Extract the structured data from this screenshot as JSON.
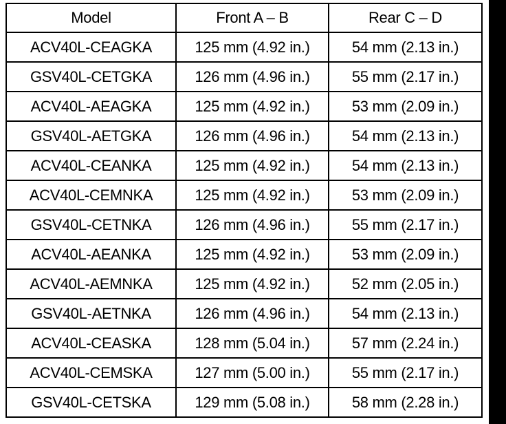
{
  "table": {
    "headers": [
      "Model",
      "Front A – B",
      "Rear C – D"
    ],
    "rows": [
      [
        "ACV40L-CEAGKA",
        "125 mm (4.92 in.)",
        "54 mm (2.13 in.)"
      ],
      [
        "GSV40L-CETGKA",
        "126 mm (4.96 in.)",
        "55 mm (2.17 in.)"
      ],
      [
        "ACV40L-AEAGKA",
        "125 mm (4.92 in.)",
        "53 mm (2.09 in.)"
      ],
      [
        "GSV40L-AETGKA",
        "126 mm (4.96 in.)",
        "54 mm (2.13 in.)"
      ],
      [
        "ACV40L-CEANKA",
        "125 mm (4.92 in.)",
        "54 mm (2.13 in.)"
      ],
      [
        "ACV40L-CEMNKA",
        "125 mm (4.92 in.)",
        "53 mm (2.09 in.)"
      ],
      [
        "GSV40L-CETNKA",
        "126 mm (4.96 in.)",
        "55 mm (2.17 in.)"
      ],
      [
        "ACV40L-AEANKA",
        "125 mm (4.92 in.)",
        "53 mm (2.09 in.)"
      ],
      [
        "ACV40L-AEMNKA",
        "125 mm (4.92 in.)",
        "52 mm (2.05 in.)"
      ],
      [
        "GSV40L-AETNKA",
        "126 mm (4.96 in.)",
        "54 mm (2.13 in.)"
      ],
      [
        "ACV40L-CEASKA",
        "128 mm (5.04 in.)",
        "57 mm (2.24 in.)"
      ],
      [
        "ACV40L-CEMSKA",
        "127 mm (5.00 in.)",
        "55 mm (2.17 in.)"
      ],
      [
        "GSV40L-CETSKA",
        "129 mm (5.08 in.)",
        "58 mm (2.28 in.)"
      ]
    ]
  },
  "colors": {
    "border": "#000000",
    "text": "#000000",
    "background": "#ffffff",
    "edge_bar": "#000000"
  }
}
